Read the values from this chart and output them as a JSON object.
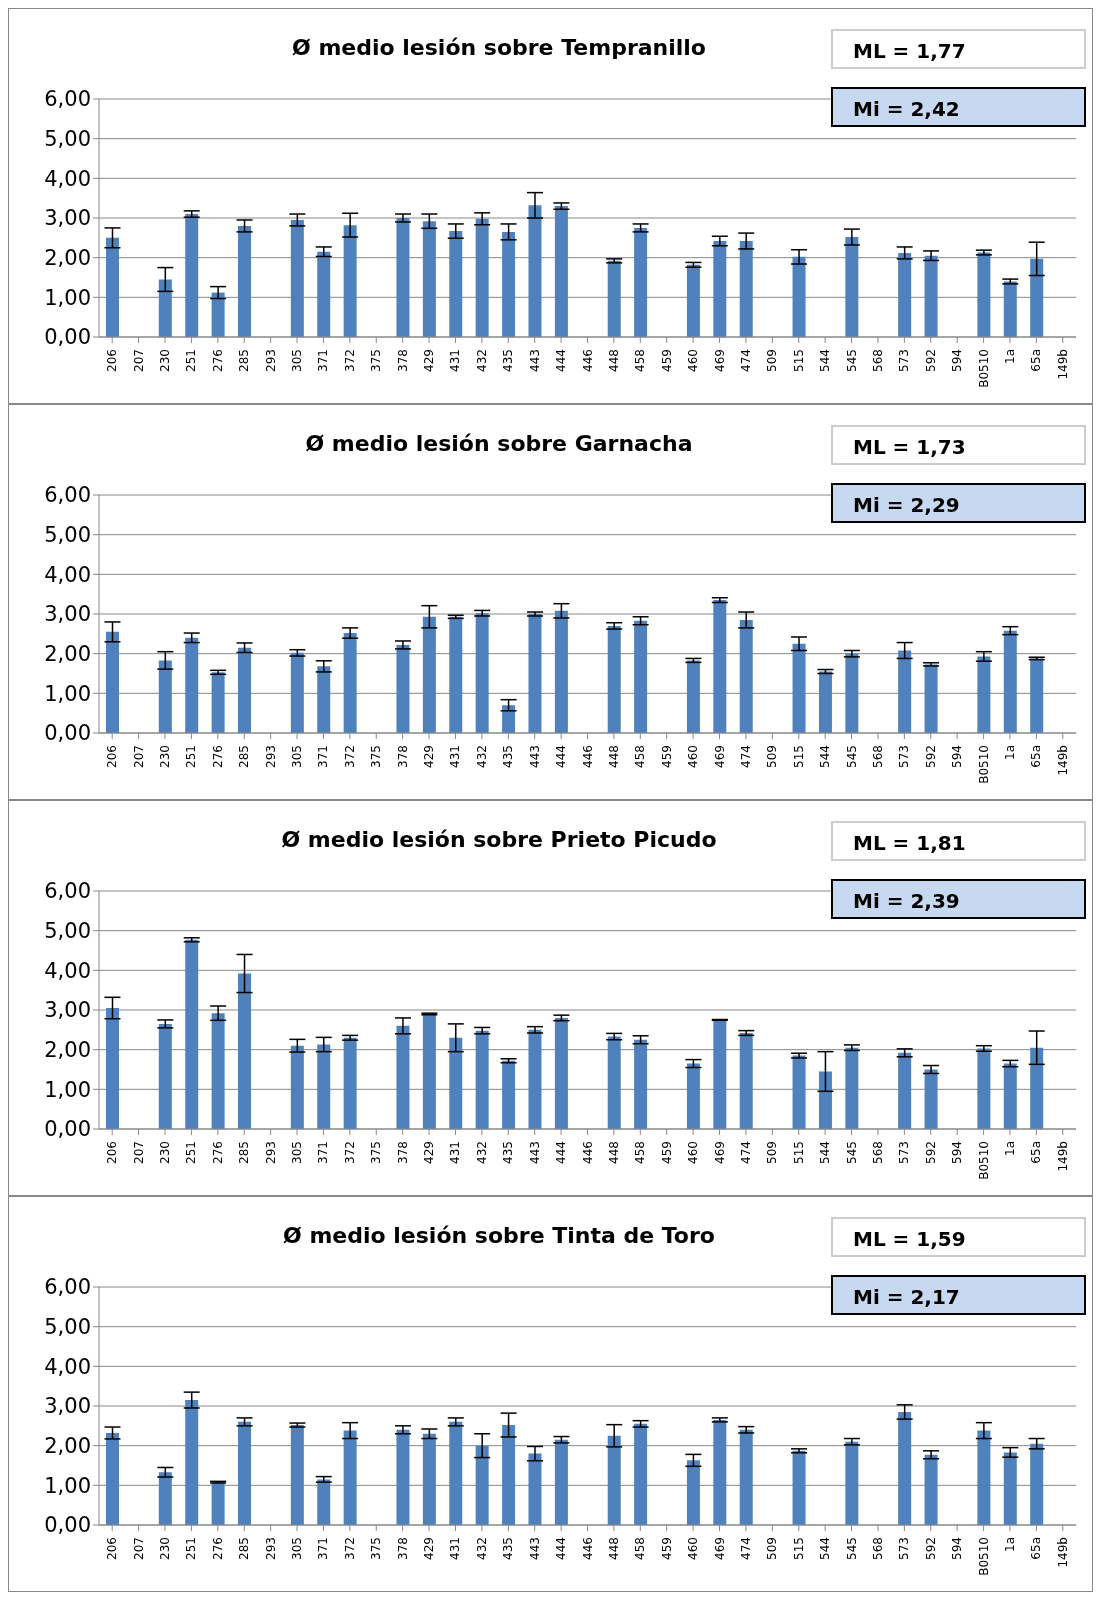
{
  "chart_data": [
    {
      "type": "bar",
      "title": "Ø medio lesión sobre Tempranillo",
      "categories": [
        "206",
        "207",
        "230",
        "251",
        "276",
        "285",
        "293",
        "305",
        "371",
        "372",
        "375",
        "378",
        "429",
        "431",
        "432",
        "435",
        "443",
        "444",
        "446",
        "448",
        "458",
        "459",
        "460",
        "469",
        "474",
        "509",
        "515",
        "544",
        "545",
        "568",
        "573",
        "592",
        "594",
        "B0510",
        "1a",
        "65a",
        "149b"
      ],
      "values": [
        2.5,
        0,
        1.45,
        3.1,
        1.12,
        2.8,
        0,
        2.95,
        2.15,
        2.82,
        0,
        3.0,
        2.92,
        2.67,
        2.98,
        2.65,
        3.32,
        3.3,
        0,
        1.92,
        2.75,
        0,
        1.82,
        2.42,
        2.42,
        0,
        2.02,
        0,
        2.52,
        0,
        2.12,
        2.05,
        0,
        2.13,
        1.4,
        1.97,
        0
      ],
      "errors": [
        0.25,
        null,
        0.3,
        0.08,
        0.15,
        0.15,
        null,
        0.15,
        0.12,
        0.3,
        null,
        0.1,
        0.18,
        0.18,
        0.15,
        0.2,
        0.32,
        0.08,
        null,
        0.05,
        0.1,
        null,
        0.06,
        0.12,
        0.2,
        null,
        0.18,
        null,
        0.2,
        null,
        0.15,
        0.12,
        null,
        0.06,
        0.06,
        0.42,
        null
      ],
      "color": "#4f81bd",
      "ylim": [
        0,
        6
      ],
      "yticks": [
        {
          "value": 0,
          "label": "0,00"
        },
        {
          "value": 1,
          "label": "1,00"
        },
        {
          "value": 2,
          "label": "2,00"
        },
        {
          "value": 3,
          "label": "3,00"
        },
        {
          "value": 4,
          "label": "4,00"
        },
        {
          "value": 5,
          "label": "5,00"
        },
        {
          "value": 6,
          "label": "6,00"
        }
      ],
      "grid": "y",
      "annotations": [
        "ML  = 1,77",
        "Mi  = 2,42"
      ]
    },
    {
      "type": "bar",
      "title": "Ø medio lesión sobre Garnacha",
      "categories": [
        "206",
        "207",
        "230",
        "251",
        "276",
        "285",
        "293",
        "305",
        "371",
        "372",
        "375",
        "378",
        "429",
        "431",
        "432",
        "435",
        "443",
        "444",
        "446",
        "448",
        "458",
        "459",
        "460",
        "469",
        "474",
        "509",
        "515",
        "544",
        "545",
        "568",
        "573",
        "592",
        "594",
        "B0510",
        "1a",
        "65a",
        "149b"
      ],
      "values": [
        2.55,
        0,
        1.83,
        2.4,
        1.53,
        2.15,
        0,
        2.02,
        1.68,
        2.52,
        0,
        2.22,
        2.93,
        2.93,
        3.02,
        0.7,
        3.0,
        3.08,
        0,
        2.7,
        2.83,
        0,
        1.83,
        3.35,
        2.85,
        0,
        2.25,
        1.55,
        2.0,
        0,
        2.08,
        1.73,
        0,
        1.93,
        2.58,
        1.88,
        0
      ],
      "errors": [
        0.25,
        null,
        0.22,
        0.12,
        0.05,
        0.12,
        null,
        0.08,
        0.14,
        0.13,
        null,
        0.1,
        0.28,
        0.04,
        0.07,
        0.14,
        0.05,
        0.18,
        null,
        0.08,
        0.1,
        null,
        0.05,
        0.06,
        0.2,
        null,
        0.17,
        0.05,
        0.08,
        null,
        0.2,
        0.04,
        null,
        0.12,
        0.1,
        0.03,
        null
      ],
      "color": "#4f81bd",
      "ylim": [
        0,
        6
      ],
      "yticks": [
        {
          "value": 0,
          "label": "0,00"
        },
        {
          "value": 1,
          "label": "1,00"
        },
        {
          "value": 2,
          "label": "2,00"
        },
        {
          "value": 3,
          "label": "3,00"
        },
        {
          "value": 4,
          "label": "4,00"
        },
        {
          "value": 5,
          "label": "5,00"
        },
        {
          "value": 6,
          "label": "6,00"
        }
      ],
      "grid": "y",
      "annotations": [
        "ML  = 1,73",
        "Mi  = 2,29"
      ]
    },
    {
      "type": "bar",
      "title": "Ø medio lesión sobre Prieto Picudo",
      "categories": [
        "206",
        "207",
        "230",
        "251",
        "276",
        "285",
        "293",
        "305",
        "371",
        "372",
        "375",
        "378",
        "429",
        "431",
        "432",
        "435",
        "443",
        "444",
        "446",
        "448",
        "458",
        "459",
        "460",
        "469",
        "474",
        "509",
        "515",
        "544",
        "545",
        "568",
        "573",
        "592",
        "594",
        "B0510",
        "1a",
        "65a",
        "149b"
      ],
      "values": [
        3.05,
        0,
        2.65,
        4.77,
        2.92,
        3.92,
        0,
        2.1,
        2.13,
        2.3,
        0,
        2.6,
        2.9,
        2.3,
        2.48,
        1.72,
        2.5,
        2.8,
        0,
        2.33,
        2.25,
        0,
        1.65,
        2.75,
        2.42,
        0,
        1.85,
        1.45,
        2.05,
        0,
        1.92,
        1.5,
        0,
        2.03,
        1.65,
        2.05,
        0
      ],
      "errors": [
        0.27,
        null,
        0.1,
        0.05,
        0.18,
        0.48,
        null,
        0.16,
        0.18,
        0.06,
        null,
        0.2,
        0.02,
        0.35,
        0.08,
        0.05,
        0.08,
        0.07,
        null,
        0.08,
        0.1,
        null,
        0.1,
        0.01,
        0.06,
        null,
        0.06,
        0.5,
        0.07,
        null,
        0.1,
        0.1,
        null,
        0.07,
        0.08,
        0.42,
        null
      ],
      "color": "#4f81bd",
      "ylim": [
        0,
        6
      ],
      "yticks": [
        {
          "value": 0,
          "label": "0,00"
        },
        {
          "value": 1,
          "label": "1,00"
        },
        {
          "value": 2,
          "label": "2,00"
        },
        {
          "value": 3,
          "label": "3,00"
        },
        {
          "value": 4,
          "label": "4,00"
        },
        {
          "value": 5,
          "label": "5,00"
        },
        {
          "value": 6,
          "label": "6,00"
        }
      ],
      "grid": "y",
      "annotations": [
        "ML  = 1,81",
        "Mi  = 2,39"
      ]
    },
    {
      "type": "bar",
      "title": "Ø medio lesión sobre Tinta de Toro",
      "categories": [
        "206",
        "207",
        "230",
        "251",
        "276",
        "285",
        "293",
        "305",
        "371",
        "372",
        "375",
        "378",
        "429",
        "431",
        "432",
        "435",
        "443",
        "444",
        "446",
        "448",
        "458",
        "459",
        "460",
        "469",
        "474",
        "509",
        "515",
        "544",
        "545",
        "568",
        "573",
        "592",
        "594",
        "B0510",
        "1a",
        "65a",
        "149b"
      ],
      "values": [
        2.32,
        0,
        1.33,
        3.15,
        1.08,
        2.6,
        0,
        2.52,
        1.15,
        2.38,
        0,
        2.4,
        2.3,
        2.6,
        2.0,
        2.52,
        1.8,
        2.15,
        0,
        2.25,
        2.55,
        0,
        1.63,
        2.65,
        2.4,
        0,
        1.87,
        0,
        2.1,
        0,
        2.85,
        1.77,
        0,
        2.38,
        1.83,
        2.05,
        0
      ],
      "errors": [
        0.15,
        null,
        0.12,
        0.2,
        0.02,
        0.1,
        null,
        0.05,
        0.07,
        0.2,
        null,
        0.1,
        0.12,
        0.1,
        0.3,
        0.3,
        0.18,
        0.08,
        null,
        0.28,
        0.08,
        null,
        0.15,
        0.05,
        0.08,
        null,
        0.05,
        null,
        0.08,
        null,
        0.18,
        0.1,
        null,
        0.2,
        0.12,
        0.13,
        null
      ],
      "color": "#4f81bd",
      "ylim": [
        0,
        6
      ],
      "yticks": [
        {
          "value": 0,
          "label": "0,00"
        },
        {
          "value": 1,
          "label": "1,00"
        },
        {
          "value": 2,
          "label": "2,00"
        },
        {
          "value": 3,
          "label": "3,00"
        },
        {
          "value": 4,
          "label": "4,00"
        },
        {
          "value": 5,
          "label": "5,00"
        },
        {
          "value": 6,
          "label": "6,00"
        }
      ],
      "grid": "y",
      "annotations": [
        "ML  = 1,59",
        "Mi  = 2,17"
      ]
    }
  ]
}
